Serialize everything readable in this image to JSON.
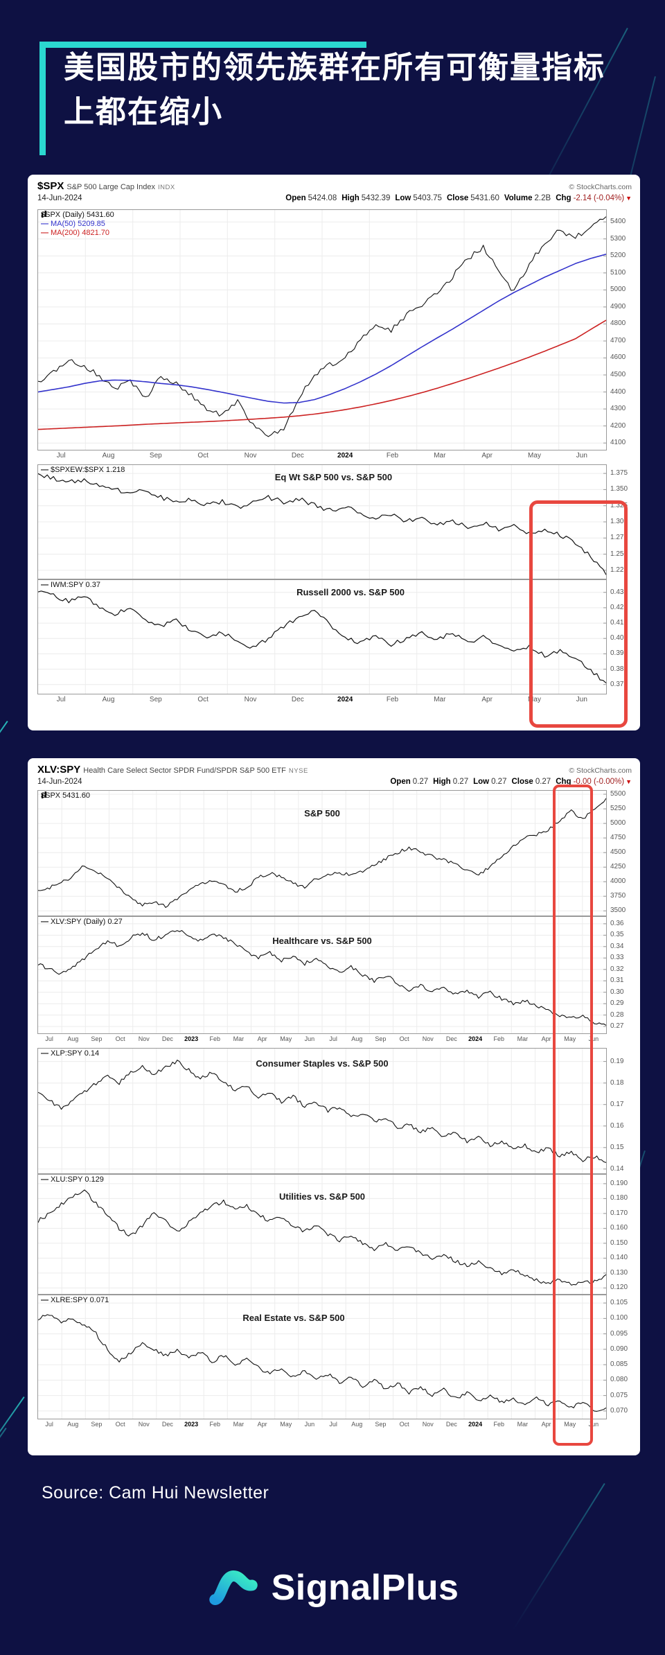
{
  "title": {
    "line1": "美国股市的领先族群在所有可衡量指标",
    "line2": "上都在缩小"
  },
  "source_text": "Source: Cam Hui Newsletter",
  "brand": {
    "name": "SignalPlus"
  },
  "colors": {
    "background": "#0E1143",
    "accent": "#2BD8D0",
    "highlight": "#E8473F",
    "ma50": "#3333CC",
    "ma200": "#CC2222",
    "series": "#111111"
  },
  "chart1": {
    "header": {
      "symbol": "$SPX",
      "description": "S&P 500 Large Cap Index",
      "exchange": "INDX",
      "credit": "© StockCharts.com",
      "date": "14-Jun-2024",
      "quote": [
        {
          "label": "Open",
          "value": "5424.08"
        },
        {
          "label": "High",
          "value": "5432.39"
        },
        {
          "label": "Low",
          "value": "5403.75"
        },
        {
          "label": "Close",
          "value": "5431.60"
        },
        {
          "label": "Volume",
          "value": "2.2B"
        },
        {
          "label": "Chg",
          "value": "-2.14 (-0.04%)",
          "neg": true,
          "arrow": "▼"
        }
      ]
    },
    "months": [
      "Jul",
      "Aug",
      "Sep",
      "Oct",
      "Nov",
      "Dec",
      "2024",
      "Feb",
      "Mar",
      "Apr",
      "May",
      "Jun"
    ]
  },
  "chart2": {
    "header": {
      "symbol": "XLV:SPY",
      "description": "Health Care Select Sector SPDR Fund/SPDR S&P 500 ETF",
      "exchange": "NYSE",
      "credit": "© StockCharts.com",
      "date": "14-Jun-2024",
      "quote": [
        {
          "label": "Open",
          "value": "0.27"
        },
        {
          "label": "High",
          "value": "0.27"
        },
        {
          "label": "Low",
          "value": "0.27"
        },
        {
          "label": "Close",
          "value": "0.27"
        },
        {
          "label": "Chg",
          "value": "-0.00 (-0.00%)",
          "neg": true,
          "arrow": "▼"
        }
      ]
    },
    "months": [
      "Jul",
      "Aug",
      "Sep",
      "Oct",
      "Nov",
      "Dec",
      "2023",
      "Feb",
      "Mar",
      "Apr",
      "May",
      "Jun",
      "Jul",
      "Aug",
      "Sep",
      "Oct",
      "Nov",
      "Dec",
      "2024",
      "Feb",
      "Mar",
      "Apr",
      "May",
      "Jun"
    ]
  },
  "chart_data": [
    {
      "id": "spx-daily",
      "chart": 1,
      "type": "candlestick-approx",
      "title": "$SPX Daily with 50/200-day moving averages",
      "ylim": [
        4060,
        5470
      ],
      "yticks": [
        "5400",
        "5300",
        "5200",
        "5100",
        "5000",
        "4900",
        "4800",
        "4700",
        "4600",
        "4500",
        "4400",
        "4300",
        "4200",
        "4100"
      ],
      "legend": [
        {
          "icon": true,
          "text": "$SPX (Daily) 5431.60",
          "color": "#111111"
        },
        {
          "dash": true,
          "text": "MA(50) 5209.85",
          "color": "#3333CC"
        },
        {
          "dash": true,
          "text": "MA(200) 4821.70",
          "color": "#CC2222"
        }
      ],
      "series": [
        {
          "name": "$SPX",
          "color": "#111111",
          "width": 1.1,
          "jitter": 16,
          "values": [
            4450,
            4520,
            4580,
            4555,
            4490,
            4420,
            4460,
            4360,
            4490,
            4450,
            4380,
            4305,
            4260,
            4350,
            4210,
            4130,
            4190,
            4360,
            4505,
            4560,
            4600,
            4705,
            4780,
            4760,
            4855,
            4905,
            4985,
            5080,
            5180,
            5255,
            5110,
            4985,
            5155,
            5280,
            5350,
            5305,
            5380,
            5431
          ]
        },
        {
          "name": "MA(50)",
          "color": "#3333CC",
          "width": 1.6,
          "jitter": 0,
          "values": [
            4400,
            4415,
            4430,
            4450,
            4465,
            4470,
            4468,
            4460,
            4450,
            4442,
            4430,
            4415,
            4398,
            4380,
            4362,
            4345,
            4335,
            4338,
            4355,
            4385,
            4420,
            4460,
            4505,
            4555,
            4610,
            4665,
            4718,
            4770,
            4825,
            4880,
            4935,
            4985,
            5030,
            5075,
            5115,
            5155,
            5185,
            5210
          ]
        },
        {
          "name": "MA(200)",
          "color": "#CC2222",
          "width": 1.6,
          "jitter": 0,
          "values": [
            4180,
            4184,
            4188,
            4192,
            4196,
            4200,
            4205,
            4210,
            4214,
            4218,
            4222,
            4226,
            4230,
            4235,
            4240,
            4246,
            4252,
            4260,
            4270,
            4282,
            4296,
            4312,
            4330,
            4350,
            4372,
            4396,
            4422,
            4450,
            4479,
            4509,
            4540,
            4572,
            4605,
            4640,
            4676,
            4713,
            4768,
            4822
          ]
        }
      ]
    },
    {
      "id": "eqwt-ratio",
      "chart": 1,
      "type": "line",
      "title": "Eq Wt S&P 500 vs. S&P 500",
      "label_pos": {
        "x": 0.52,
        "y": 0.06
      },
      "ylim": [
        1.212,
        1.388
      ],
      "yticks": [
        "1.375",
        "1.350",
        "1.325",
        "1.300",
        "1.275",
        "1.250",
        "1.225"
      ],
      "legend": [
        {
          "dash": true,
          "text": "$SPXEW:$SPX 1.218",
          "color": "#111111"
        }
      ],
      "series": [
        {
          "name": "$SPXEW:$SPX",
          "color": "#111111",
          "width": 1.2,
          "jitter": 0.0035,
          "values": [
            1.372,
            1.368,
            1.361,
            1.366,
            1.356,
            1.35,
            1.343,
            1.349,
            1.338,
            1.331,
            1.336,
            1.326,
            1.331,
            1.322,
            1.33,
            1.338,
            1.331,
            1.336,
            1.326,
            1.318,
            1.323,
            1.313,
            1.306,
            1.311,
            1.301,
            1.306,
            1.296,
            1.301,
            1.293,
            1.298,
            1.289,
            1.293,
            1.283,
            1.289,
            1.279,
            1.268,
            1.246,
            1.218
          ]
        }
      ]
    },
    {
      "id": "iwm-ratio",
      "chart": 1,
      "type": "line",
      "title": "Russell 2000 vs. S&P 500",
      "label_pos": {
        "x": 0.55,
        "y": 0.06
      },
      "ylim": [
        0.364,
        0.438
      ],
      "yticks": [
        "0.43",
        "0.42",
        "0.41",
        "0.40",
        "0.39",
        "0.38",
        "0.37"
      ],
      "legend": [
        {
          "dash": true,
          "text": "IWM:SPY 0.37",
          "color": "#111111"
        }
      ],
      "series": [
        {
          "name": "IWM:SPY",
          "color": "#111111",
          "width": 1.2,
          "jitter": 0.0013,
          "values": [
            0.43,
            0.428,
            0.424,
            0.428,
            0.42,
            0.416,
            0.42,
            0.412,
            0.408,
            0.412,
            0.405,
            0.4,
            0.404,
            0.398,
            0.394,
            0.4,
            0.408,
            0.414,
            0.418,
            0.409,
            0.401,
            0.397,
            0.402,
            0.396,
            0.4,
            0.404,
            0.399,
            0.404,
            0.397,
            0.401,
            0.395,
            0.391,
            0.395,
            0.389,
            0.392,
            0.387,
            0.379,
            0.371
          ]
        }
      ]
    },
    {
      "id": "sp500-2yr",
      "chart": 2,
      "type": "line",
      "title": "S&P 500",
      "label_pos": {
        "x": 0.5,
        "y": 0.14
      },
      "ylim": [
        3420,
        5560
      ],
      "yticks": [
        "5500",
        "5250",
        "5000",
        "4750",
        "4500",
        "4250",
        "4000",
        "3750",
        "3500"
      ],
      "legend": [
        {
          "icon": true,
          "text": "$SPX 5431.60",
          "color": "#111111"
        }
      ],
      "series": [
        {
          "name": "$SPX",
          "color": "#111111",
          "width": 1.1,
          "jitter": 28,
          "values": [
            3830,
            3900,
            3980,
            4100,
            4280,
            4190,
            4050,
            3900,
            3720,
            3600,
            3660,
            3585,
            3700,
            3850,
            3950,
            4030,
            3950,
            3830,
            3905,
            4070,
            4150,
            4080,
            3970,
            3905,
            4050,
            4120,
            4160,
            4105,
            4180,
            4280,
            4400,
            4500,
            4580,
            4520,
            4430,
            4380,
            4300,
            4205,
            4120,
            4250,
            4450,
            4600,
            4750,
            4800,
            4900,
            5050,
            5230,
            5060,
            5260,
            5431
          ]
        }
      ]
    },
    {
      "id": "xlv-ratio",
      "chart": 2,
      "type": "line",
      "title": "Healthcare vs. S&P 500",
      "label_pos": {
        "x": 0.5,
        "y": 0.16
      },
      "ylim": [
        0.264,
        0.366
      ],
      "yticks": [
        "0.36",
        "0.35",
        "0.34",
        "0.33",
        "0.32",
        "0.31",
        "0.30",
        "0.29",
        "0.28",
        "0.27"
      ],
      "legend": [
        {
          "dash": true,
          "text": "XLV:SPY (Daily) 0.27",
          "color": "#111111"
        }
      ],
      "series": [
        {
          "name": "XLV:SPY",
          "color": "#111111",
          "width": 1.1,
          "jitter": 0.0016,
          "values": [
            0.325,
            0.32,
            0.316,
            0.322,
            0.33,
            0.338,
            0.345,
            0.34,
            0.348,
            0.352,
            0.346,
            0.35,
            0.355,
            0.35,
            0.345,
            0.352,
            0.348,
            0.342,
            0.336,
            0.33,
            0.335,
            0.328,
            0.332,
            0.325,
            0.33,
            0.322,
            0.318,
            0.322,
            0.315,
            0.31,
            0.315,
            0.308,
            0.302,
            0.306,
            0.3,
            0.305,
            0.298,
            0.302,
            0.296,
            0.3,
            0.294,
            0.29,
            0.293,
            0.288,
            0.284,
            0.28,
            0.277,
            0.28,
            0.273,
            0.271
          ]
        }
      ]
    },
    {
      "id": "xlp-ratio",
      "chart": 2,
      "type": "line",
      "title": "Consumer Staples vs. S&P 500",
      "label_pos": {
        "x": 0.5,
        "y": 0.08
      },
      "ylim": [
        0.138,
        0.196
      ],
      "yticks": [
        "0.19",
        "0.18",
        "0.17",
        "0.16",
        "0.15",
        "0.14"
      ],
      "legend": [
        {
          "dash": true,
          "text": "XLP:SPY 0.14",
          "color": "#111111"
        }
      ],
      "series": [
        {
          "name": "XLP:SPY",
          "color": "#111111",
          "width": 1.1,
          "jitter": 0.0009,
          "values": [
            0.175,
            0.172,
            0.168,
            0.172,
            0.176,
            0.18,
            0.184,
            0.18,
            0.185,
            0.188,
            0.184,
            0.187,
            0.19,
            0.186,
            0.182,
            0.185,
            0.18,
            0.177,
            0.179,
            0.173,
            0.176,
            0.171,
            0.174,
            0.169,
            0.171,
            0.167,
            0.169,
            0.164,
            0.166,
            0.162,
            0.164,
            0.159,
            0.161,
            0.157,
            0.159,
            0.155,
            0.157,
            0.153,
            0.155,
            0.151,
            0.153,
            0.149,
            0.151,
            0.148,
            0.15,
            0.146,
            0.148,
            0.144,
            0.146,
            0.143
          ]
        }
      ]
    },
    {
      "id": "xlu-ratio",
      "chart": 2,
      "type": "line",
      "title": "Utilities vs. S&P 500",
      "label_pos": {
        "x": 0.5,
        "y": 0.14
      },
      "ylim": [
        0.116,
        0.196
      ],
      "yticks": [
        "0.190",
        "0.180",
        "0.170",
        "0.160",
        "0.150",
        "0.140",
        "0.130",
        "0.120"
      ],
      "legend": [
        {
          "dash": true,
          "text": "XLU:SPY 0.129",
          "color": "#111111"
        }
      ],
      "series": [
        {
          "name": "XLU:SPY",
          "color": "#111111",
          "width": 1.1,
          "jitter": 0.0013,
          "values": [
            0.165,
            0.17,
            0.176,
            0.181,
            0.185,
            0.177,
            0.169,
            0.16,
            0.155,
            0.162,
            0.17,
            0.165,
            0.158,
            0.164,
            0.17,
            0.175,
            0.178,
            0.172,
            0.175,
            0.169,
            0.165,
            0.168,
            0.162,
            0.158,
            0.162,
            0.156,
            0.152,
            0.155,
            0.15,
            0.146,
            0.15,
            0.145,
            0.148,
            0.143,
            0.14,
            0.143,
            0.138,
            0.135,
            0.138,
            0.133,
            0.13,
            0.133,
            0.128,
            0.125,
            0.123,
            0.126,
            0.122,
            0.125,
            0.124,
            0.129
          ]
        }
      ]
    },
    {
      "id": "xlre-ratio",
      "chart": 2,
      "type": "line",
      "title": "Real Estate vs. S&P 500",
      "label_pos": {
        "x": 0.45,
        "y": 0.14
      },
      "ylim": [
        0.0675,
        0.1075
      ],
      "yticks": [
        "0.105",
        "0.100",
        "0.095",
        "0.090",
        "0.085",
        "0.080",
        "0.075",
        "0.070"
      ],
      "legend": [
        {
          "dash": true,
          "text": "XLRE:SPY 0.071",
          "color": "#111111"
        }
      ],
      "series": [
        {
          "name": "XLRE:SPY",
          "color": "#111111",
          "width": 1.1,
          "jitter": 0.0006,
          "values": [
            0.1,
            0.101,
            0.099,
            0.1,
            0.098,
            0.095,
            0.09,
            0.086,
            0.089,
            0.092,
            0.09,
            0.088,
            0.09,
            0.087,
            0.089,
            0.086,
            0.088,
            0.085,
            0.087,
            0.084,
            0.082,
            0.084,
            0.081,
            0.083,
            0.08,
            0.082,
            0.079,
            0.081,
            0.078,
            0.08,
            0.077,
            0.079,
            0.076,
            0.078,
            0.075,
            0.077,
            0.074,
            0.076,
            0.073,
            0.075,
            0.073,
            0.074,
            0.072,
            0.074,
            0.072,
            0.073,
            0.071,
            0.073,
            0.07,
            0.071
          ]
        }
      ]
    }
  ]
}
